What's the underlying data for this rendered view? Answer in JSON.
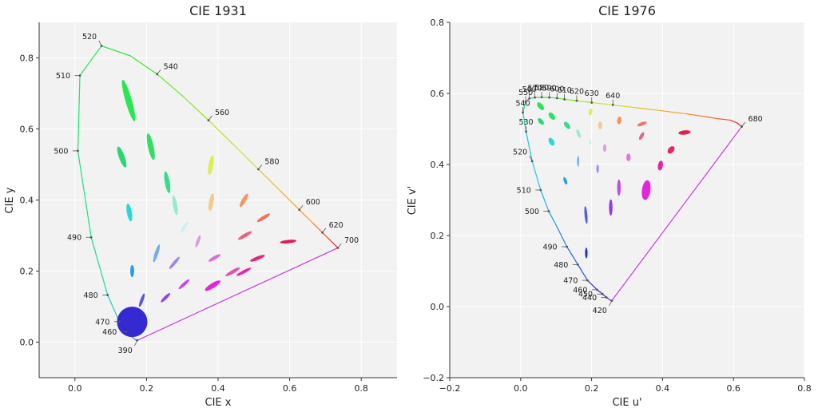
{
  "chart_data": [
    {
      "type": "scatter",
      "title": "CIE 1931",
      "xlabel": "CIE x",
      "ylabel": "CIE y",
      "xlim": [
        -0.1,
        0.9
      ],
      "ylim": [
        -0.1,
        0.9
      ],
      "xticks": [
        "0.0",
        "0.2",
        "0.4",
        "0.6",
        "0.8"
      ],
      "yticks": [
        "0.0",
        "0.2",
        "0.4",
        "0.6",
        "0.8"
      ],
      "grid": true,
      "locus": [
        [
          0.174,
          0.005
        ],
        [
          0.1741,
          0.005
        ],
        [
          0.1738,
          0.0049
        ],
        [
          0.1736,
          0.0049
        ],
        [
          0.1733,
          0.0048
        ],
        [
          0.1726,
          0.0048
        ],
        [
          0.1714,
          0.0051
        ],
        [
          0.1689,
          0.0069
        ],
        [
          0.1644,
          0.0109
        ],
        [
          0.1566,
          0.0177
        ],
        [
          0.144,
          0.0297
        ],
        [
          0.1241,
          0.0578
        ],
        [
          0.0913,
          0.1327
        ],
        [
          0.0454,
          0.295
        ],
        [
          0.0082,
          0.5384
        ],
        [
          0.0139,
          0.7502
        ],
        [
          0.0743,
          0.8338
        ],
        [
          0.1547,
          0.8059
        ],
        [
          0.2296,
          0.7543
        ],
        [
          0.3016,
          0.6923
        ],
        [
          0.3731,
          0.6245
        ],
        [
          0.4441,
          0.5547
        ],
        [
          0.5125,
          0.4866
        ],
        [
          0.5752,
          0.4242
        ],
        [
          0.627,
          0.3725
        ],
        [
          0.6658,
          0.334
        ],
        [
          0.6915,
          0.3083
        ],
        [
          0.7079,
          0.292
        ],
        [
          0.719,
          0.2809
        ],
        [
          0.7347,
          0.2653
        ]
      ],
      "wavelength_labels": [
        {
          "label": "390",
          "x": 0.1741,
          "y": 0.005,
          "pos": "below-left"
        },
        {
          "label": "460",
          "x": 0.144,
          "y": 0.0297,
          "pos": "left"
        },
        {
          "label": "470",
          "x": 0.1241,
          "y": 0.0578,
          "pos": "left"
        },
        {
          "label": "480",
          "x": 0.0913,
          "y": 0.1327,
          "pos": "left"
        },
        {
          "label": "490",
          "x": 0.0454,
          "y": 0.295,
          "pos": "left"
        },
        {
          "label": "500",
          "x": 0.0082,
          "y": 0.5384,
          "pos": "left"
        },
        {
          "label": "510",
          "x": 0.0139,
          "y": 0.7502,
          "pos": "left"
        },
        {
          "label": "520",
          "x": 0.0743,
          "y": 0.8338,
          "pos": "above-left"
        },
        {
          "label": "540",
          "x": 0.2296,
          "y": 0.7543,
          "pos": "above-right"
        },
        {
          "label": "560",
          "x": 0.3731,
          "y": 0.6245,
          "pos": "above-right"
        },
        {
          "label": "580",
          "x": 0.5125,
          "y": 0.4866,
          "pos": "above-right"
        },
        {
          "label": "600",
          "x": 0.627,
          "y": 0.3725,
          "pos": "above-right"
        },
        {
          "label": "620",
          "x": 0.6915,
          "y": 0.3083,
          "pos": "above-right"
        },
        {
          "label": "700",
          "x": 0.7347,
          "y": 0.2653,
          "pos": "above-right"
        }
      ],
      "ellipses": [
        {
          "x": 0.16,
          "y": 0.057,
          "w": 0.85,
          "h": 0.85,
          "rot": 20,
          "color": "#2a1fd0"
        },
        {
          "x": 0.187,
          "y": 0.118,
          "w": 0.09,
          "h": 0.4,
          "rot": 20,
          "color": "#4850ea"
        },
        {
          "x": 0.253,
          "y": 0.125,
          "w": 0.09,
          "h": 0.36,
          "rot": 45,
          "color": "#8a3ae8"
        },
        {
          "x": 0.305,
          "y": 0.163,
          "w": 0.09,
          "h": 0.4,
          "rot": 48,
          "color": "#c23fe6"
        },
        {
          "x": 0.385,
          "y": 0.159,
          "w": 0.14,
          "h": 0.5,
          "rot": 58,
          "color": "#e11ad4"
        },
        {
          "x": 0.472,
          "y": 0.198,
          "w": 0.09,
          "h": 0.46,
          "rot": 62,
          "color": "#e61aa8"
        },
        {
          "x": 0.51,
          "y": 0.236,
          "w": 0.1,
          "h": 0.44,
          "rot": 68,
          "color": "#e01a74"
        },
        {
          "x": 0.596,
          "y": 0.283,
          "w": 0.1,
          "h": 0.46,
          "rot": 84,
          "color": "#e0104f"
        },
        {
          "x": 0.344,
          "y": 0.284,
          "w": 0.09,
          "h": 0.36,
          "rot": 20,
          "color": "#d997d9"
        },
        {
          "x": 0.39,
          "y": 0.237,
          "w": 0.1,
          "h": 0.38,
          "rot": 60,
          "color": "#d866d6"
        },
        {
          "x": 0.441,
          "y": 0.198,
          "w": 0.1,
          "h": 0.46,
          "rot": 60,
          "color": "#e04aa6"
        },
        {
          "x": 0.278,
          "y": 0.223,
          "w": 0.09,
          "h": 0.44,
          "rot": 40,
          "color": "#9b7de8"
        },
        {
          "x": 0.3,
          "y": 0.163,
          "w": 0.0,
          "h": 0.0,
          "rot": 0,
          "color": "#000000"
        },
        {
          "x": 0.15,
          "y": 0.68,
          "w": 0.18,
          "h": 1.2,
          "rot": -16,
          "color": "#1ee64a"
        },
        {
          "x": 0.131,
          "y": 0.521,
          "w": 0.16,
          "h": 0.62,
          "rot": -20,
          "color": "#22d46a"
        },
        {
          "x": 0.212,
          "y": 0.55,
          "w": 0.16,
          "h": 0.76,
          "rot": -12,
          "color": "#26dd58"
        },
        {
          "x": 0.258,
          "y": 0.45,
          "w": 0.14,
          "h": 0.62,
          "rot": -10,
          "color": "#2ddb86"
        },
        {
          "x": 0.152,
          "y": 0.365,
          "w": 0.14,
          "h": 0.5,
          "rot": -10,
          "color": "#1ad7d7"
        },
        {
          "x": 0.28,
          "y": 0.385,
          "w": 0.12,
          "h": 0.56,
          "rot": -10,
          "color": "#8eeacb"
        },
        {
          "x": 0.38,
          "y": 0.498,
          "w": 0.13,
          "h": 0.56,
          "rot": 10,
          "color": "#d8ee4a"
        },
        {
          "x": 0.381,
          "y": 0.394,
          "w": 0.13,
          "h": 0.5,
          "rot": 10,
          "color": "#f2c88a"
        },
        {
          "x": 0.472,
          "y": 0.399,
          "w": 0.12,
          "h": 0.42,
          "rot": 30,
          "color": "#f0925a"
        },
        {
          "x": 0.527,
          "y": 0.35,
          "w": 0.1,
          "h": 0.42,
          "rot": 58,
          "color": "#ee6a50"
        },
        {
          "x": 0.475,
          "y": 0.3,
          "w": 0.1,
          "h": 0.44,
          "rot": 60,
          "color": "#e85a7a"
        },
        {
          "x": 0.305,
          "y": 0.323,
          "w": 0.1,
          "h": 0.36,
          "rot": 30,
          "color": "#c8f0f0"
        },
        {
          "x": 0.228,
          "y": 0.25,
          "w": 0.1,
          "h": 0.52,
          "rot": 18,
          "color": "#6aa8ec"
        },
        {
          "x": 0.16,
          "y": 0.2,
          "w": 0.11,
          "h": 0.34,
          "rot": 0,
          "color": "#1a9ae6"
        }
      ]
    },
    {
      "type": "scatter",
      "title": "CIE 1976",
      "xlabel": "CIE u'",
      "ylabel": "CIE v'",
      "xlim": [
        -0.2,
        0.8
      ],
      "ylim": [
        -0.2,
        0.8
      ],
      "xticks": [
        "−0.2",
        "0.0",
        "0.2",
        "0.4",
        "0.6",
        "0.8"
      ],
      "yticks": [
        "−0.2",
        "0.0",
        "0.2",
        "0.4",
        "0.6",
        "0.8"
      ],
      "grid": true,
      "locus": [
        [
          0.2568,
          0.0165
        ],
        [
          0.2518,
          0.0186
        ],
        [
          0.242,
          0.0258
        ],
        [
          0.2304,
          0.0355
        ],
        [
          0.2153,
          0.0475
        ],
        [
          0.1883,
          0.0739
        ],
        [
          0.1612,
          0.1183
        ],
        [
          0.1302,
          0.1686
        ],
        [
          0.1025,
          0.2241
        ],
        [
          0.0792,
          0.2684
        ],
        [
          0.0563,
          0.3281
        ],
        [
          0.0324,
          0.4093
        ],
        [
          0.0152,
          0.4927
        ],
        [
          0.0063,
          0.5463
        ],
        [
          0.0142,
          0.5765
        ],
        [
          0.0245,
          0.5857
        ],
        [
          0.0401,
          0.5884
        ],
        [
          0.0593,
          0.5894
        ],
        [
          0.0808,
          0.5886
        ],
        [
          0.1025,
          0.5866
        ],
        [
          0.1235,
          0.5835
        ],
        [
          0.158,
          0.5795
        ],
        [
          0.2003,
          0.5742
        ],
        [
          0.2599,
          0.5676
        ],
        [
          0.3267,
          0.5596
        ],
        [
          0.3975,
          0.5513
        ],
        [
          0.4696,
          0.5423
        ],
        [
          0.5224,
          0.5343
        ],
        [
          0.5585,
          0.5285
        ],
        [
          0.5908,
          0.5249
        ],
        [
          0.6109,
          0.5166
        ],
        [
          0.6233,
          0.5066
        ]
      ],
      "wavelength_labels": [
        {
          "label": "420",
          "x": 0.2568,
          "y": 0.0165,
          "pos": "below-left"
        },
        {
          "label": "440",
          "x": 0.2418,
          "y": 0.0258,
          "pos": "left"
        },
        {
          "label": "450",
          "x": 0.2304,
          "y": 0.0355,
          "pos": "left"
        },
        {
          "label": "460",
          "x": 0.2153,
          "y": 0.0475,
          "pos": "left"
        },
        {
          "label": "470",
          "x": 0.1883,
          "y": 0.0739,
          "pos": "left"
        },
        {
          "label": "480",
          "x": 0.1612,
          "y": 0.1183,
          "pos": "left"
        },
        {
          "label": "490",
          "x": 0.1302,
          "y": 0.1686,
          "pos": "left"
        },
        {
          "label": "500",
          "x": 0.0792,
          "y": 0.2684,
          "pos": "left"
        },
        {
          "label": "510",
          "x": 0.0563,
          "y": 0.3281,
          "pos": "left"
        },
        {
          "label": "520",
          "x": 0.0324,
          "y": 0.4093,
          "pos": "above-left"
        },
        {
          "label": "530",
          "x": 0.0152,
          "y": 0.4927,
          "pos": "above"
        },
        {
          "label": "540",
          "x": 0.0063,
          "y": 0.5463,
          "pos": "above"
        },
        {
          "label": "550",
          "x": 0.0142,
          "y": 0.5765,
          "pos": "above"
        },
        {
          "label": "560",
          "x": 0.0245,
          "y": 0.5857,
          "pos": "above"
        },
        {
          "label": "570",
          "x": 0.0401,
          "y": 0.5884,
          "pos": "above"
        },
        {
          "label": "580",
          "x": 0.0593,
          "y": 0.5894,
          "pos": "above"
        },
        {
          "label": "590",
          "x": 0.0808,
          "y": 0.5886,
          "pos": "above"
        },
        {
          "label": "600",
          "x": 0.1025,
          "y": 0.5866,
          "pos": "above"
        },
        {
          "label": "610",
          "x": 0.1235,
          "y": 0.5835,
          "pos": "above"
        },
        {
          "label": "620",
          "x": 0.158,
          "y": 0.5795,
          "pos": "above"
        },
        {
          "label": "630",
          "x": 0.2003,
          "y": 0.5742,
          "pos": "above"
        },
        {
          "label": "640",
          "x": 0.2599,
          "y": 0.5676,
          "pos": "above"
        },
        {
          "label": "680",
          "x": 0.6233,
          "y": 0.5066,
          "pos": "above-right"
        }
      ],
      "ellipses": [
        {
          "x": 0.185,
          "y": 0.151,
          "w": 0.07,
          "h": 0.3,
          "rot": 0,
          "color": "#1a20c8"
        },
        {
          "x": 0.184,
          "y": 0.258,
          "w": 0.08,
          "h": 0.5,
          "rot": -5,
          "color": "#4650e6"
        },
        {
          "x": 0.254,
          "y": 0.279,
          "w": 0.1,
          "h": 0.46,
          "rot": 0,
          "color": "#9030e8"
        },
        {
          "x": 0.354,
          "y": 0.328,
          "w": 0.24,
          "h": 0.56,
          "rot": 8,
          "color": "#e01ad8"
        },
        {
          "x": 0.277,
          "y": 0.335,
          "w": 0.1,
          "h": 0.46,
          "rot": 0,
          "color": "#c040e8"
        },
        {
          "x": 0.394,
          "y": 0.397,
          "w": 0.14,
          "h": 0.28,
          "rot": 10,
          "color": "#e01aa0"
        },
        {
          "x": 0.424,
          "y": 0.441,
          "w": 0.16,
          "h": 0.24,
          "rot": 40,
          "color": "#e01a60"
        },
        {
          "x": 0.462,
          "y": 0.49,
          "w": 0.12,
          "h": 0.34,
          "rot": 84,
          "color": "#e0104a"
        },
        {
          "x": 0.341,
          "y": 0.48,
          "w": 0.1,
          "h": 0.24,
          "rot": 30,
          "color": "#e85a80"
        },
        {
          "x": 0.342,
          "y": 0.514,
          "w": 0.1,
          "h": 0.28,
          "rot": 70,
          "color": "#ee7060"
        },
        {
          "x": 0.278,
          "y": 0.524,
          "w": 0.12,
          "h": 0.22,
          "rot": 10,
          "color": "#f09050"
        },
        {
          "x": 0.224,
          "y": 0.51,
          "w": 0.12,
          "h": 0.22,
          "rot": 0,
          "color": "#f2c890"
        },
        {
          "x": 0.197,
          "y": 0.548,
          "w": 0.1,
          "h": 0.2,
          "rot": 10,
          "color": "#d8ee50"
        },
        {
          "x": 0.304,
          "y": 0.42,
          "w": 0.12,
          "h": 0.22,
          "rot": 0,
          "color": "#dc70d8"
        },
        {
          "x": 0.237,
          "y": 0.446,
          "w": 0.1,
          "h": 0.22,
          "rot": 0,
          "color": "#d8a0d8"
        },
        {
          "x": 0.217,
          "y": 0.388,
          "w": 0.07,
          "h": 0.24,
          "rot": 0,
          "color": "#a080e8"
        },
        {
          "x": 0.196,
          "y": 0.463,
          "w": 0.06,
          "h": 0.18,
          "rot": 0,
          "color": "#c8f2f2"
        },
        {
          "x": 0.163,
          "y": 0.487,
          "w": 0.09,
          "h": 0.26,
          "rot": -20,
          "color": "#90eacc"
        },
        {
          "x": 0.162,
          "y": 0.409,
          "w": 0.06,
          "h": 0.3,
          "rot": 0,
          "color": "#6aa8ec"
        },
        {
          "x": 0.126,
          "y": 0.354,
          "w": 0.09,
          "h": 0.22,
          "rot": -20,
          "color": "#1a9ae6"
        },
        {
          "x": 0.087,
          "y": 0.464,
          "w": 0.14,
          "h": 0.24,
          "rot": -30,
          "color": "#1ad8d8"
        },
        {
          "x": 0.131,
          "y": 0.51,
          "w": 0.13,
          "h": 0.24,
          "rot": -40,
          "color": "#2cdc88"
        },
        {
          "x": 0.088,
          "y": 0.536,
          "w": 0.14,
          "h": 0.24,
          "rot": -40,
          "color": "#26dc60"
        },
        {
          "x": 0.057,
          "y": 0.521,
          "w": 0.12,
          "h": 0.22,
          "rot": -40,
          "color": "#22d46a"
        },
        {
          "x": 0.056,
          "y": 0.564,
          "w": 0.14,
          "h": 0.26,
          "rot": -40,
          "color": "#1ee64a"
        }
      ]
    }
  ]
}
